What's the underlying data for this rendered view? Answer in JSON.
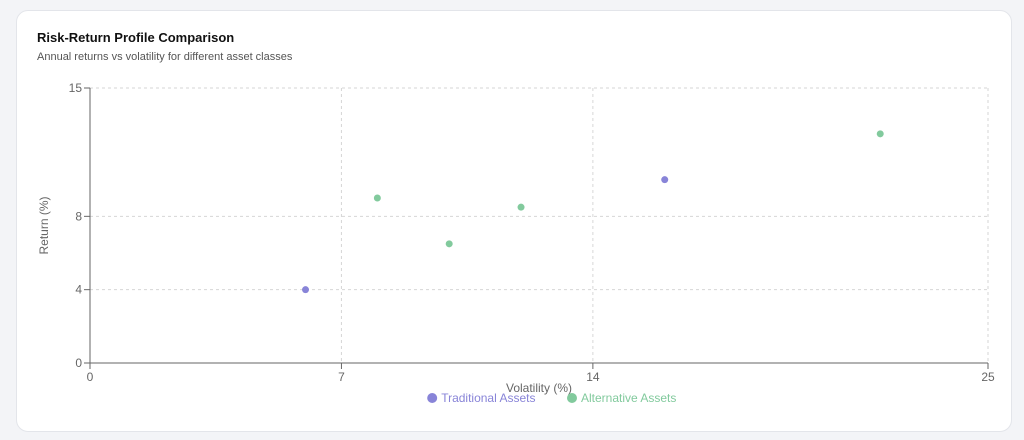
{
  "card": {
    "title": "Risk-Return Profile Comparison",
    "subtitle": "Annual returns vs volatility for different asset classes"
  },
  "chart_data": {
    "type": "scatter",
    "xlabel": "Volatility (%)",
    "ylabel": "Return (%)",
    "xlim": [
      0,
      25
    ],
    "ylim": [
      0,
      15
    ],
    "xticks": [
      0,
      7,
      14,
      25
    ],
    "yticks": [
      0,
      4,
      8,
      15
    ],
    "grid": true,
    "legend_position": "bottom-center",
    "series": [
      {
        "name": "Traditional Assets",
        "color": "#8884d8",
        "points": [
          {
            "x": 6,
            "y": 4
          },
          {
            "x": 16,
            "y": 10
          }
        ]
      },
      {
        "name": "Alternative Assets",
        "color": "#82ca9d",
        "points": [
          {
            "x": 8,
            "y": 9
          },
          {
            "x": 10,
            "y": 6.5
          },
          {
            "x": 12,
            "y": 8.5
          },
          {
            "x": 22,
            "y": 12.5
          }
        ]
      }
    ]
  }
}
